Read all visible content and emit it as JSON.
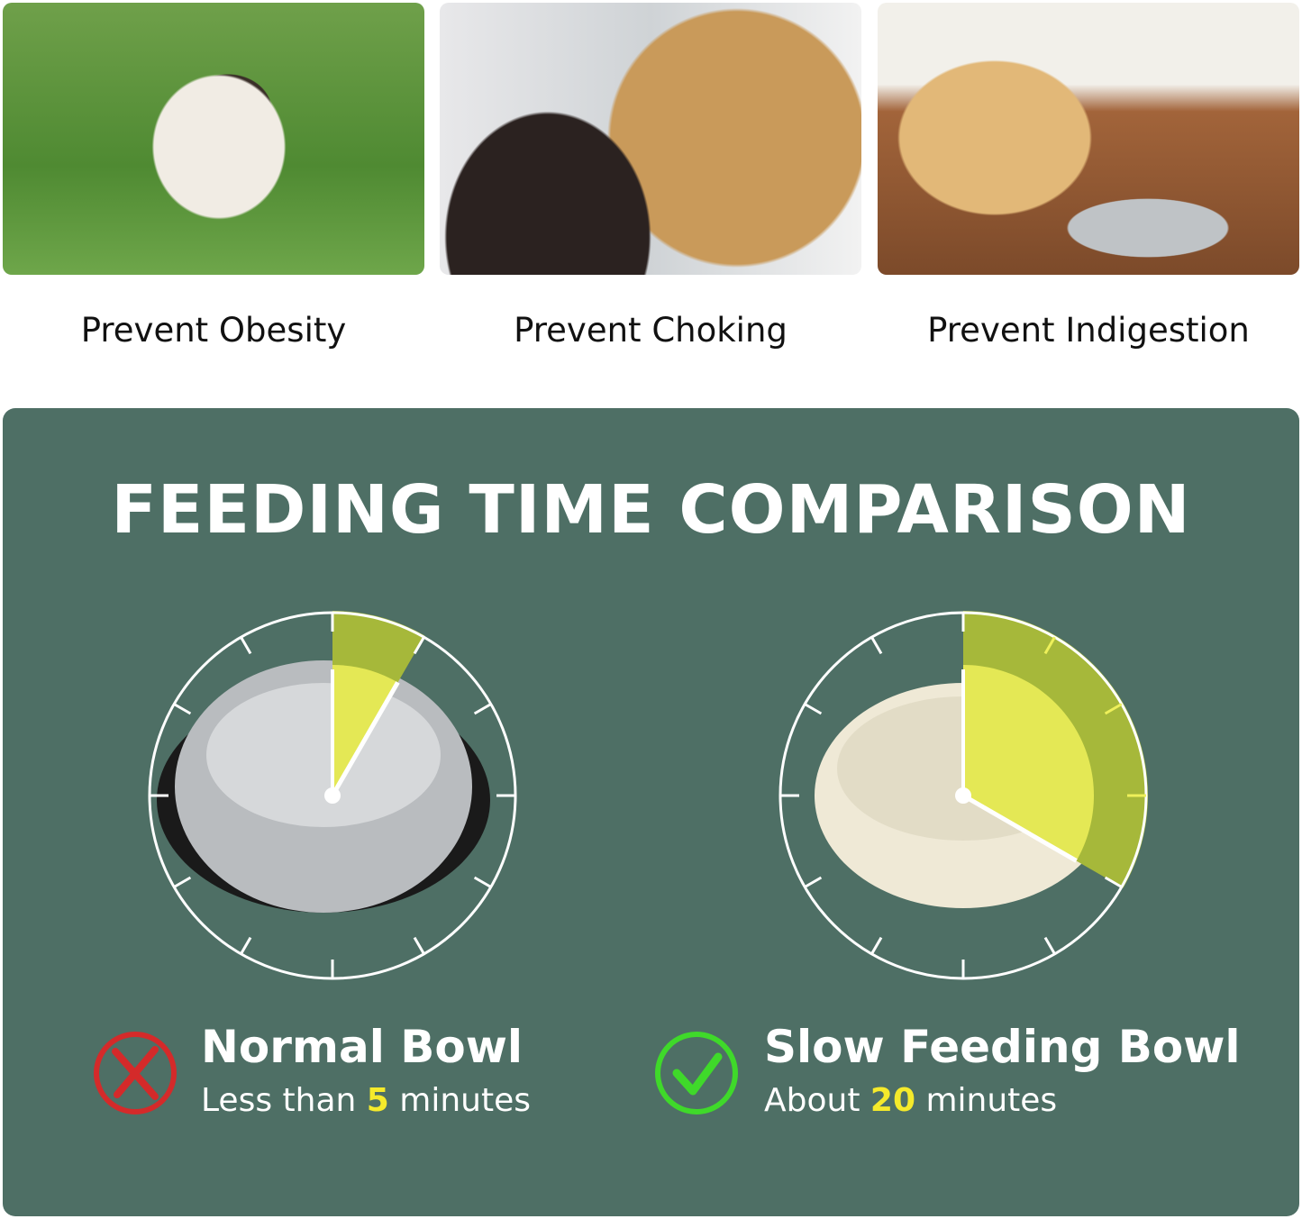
{
  "benefits": [
    {
      "label": "Prevent Obesity",
      "image": "pug-on-grass"
    },
    {
      "label": "Prevent Choking",
      "image": "golden-retriever-mouth-check"
    },
    {
      "label": "Prevent Indigestion",
      "image": "labrador-lying-by-bowl"
    }
  ],
  "comparison": {
    "title": "FEEDING TIME COMPARISON",
    "normal": {
      "name": "Normal Bowl",
      "desc_prefix": "Less than ",
      "minutes": "5",
      "desc_suffix": " minutes",
      "icon": "red-x-icon",
      "color": "#d42a2a",
      "clock_fraction": 0.0833
    },
    "slow": {
      "name": "Slow Feeding Bowl",
      "desc_prefix": "About ",
      "minutes": "20",
      "desc_suffix": " minutes",
      "icon": "green-check-icon",
      "color": "#3fd92a",
      "clock_fraction": 0.3333
    }
  },
  "colors": {
    "panel": "#4e6f65",
    "wedge_outer": "#a6b83a",
    "wedge_inner": "#eef05a",
    "highlight": "#f5ea2b"
  }
}
